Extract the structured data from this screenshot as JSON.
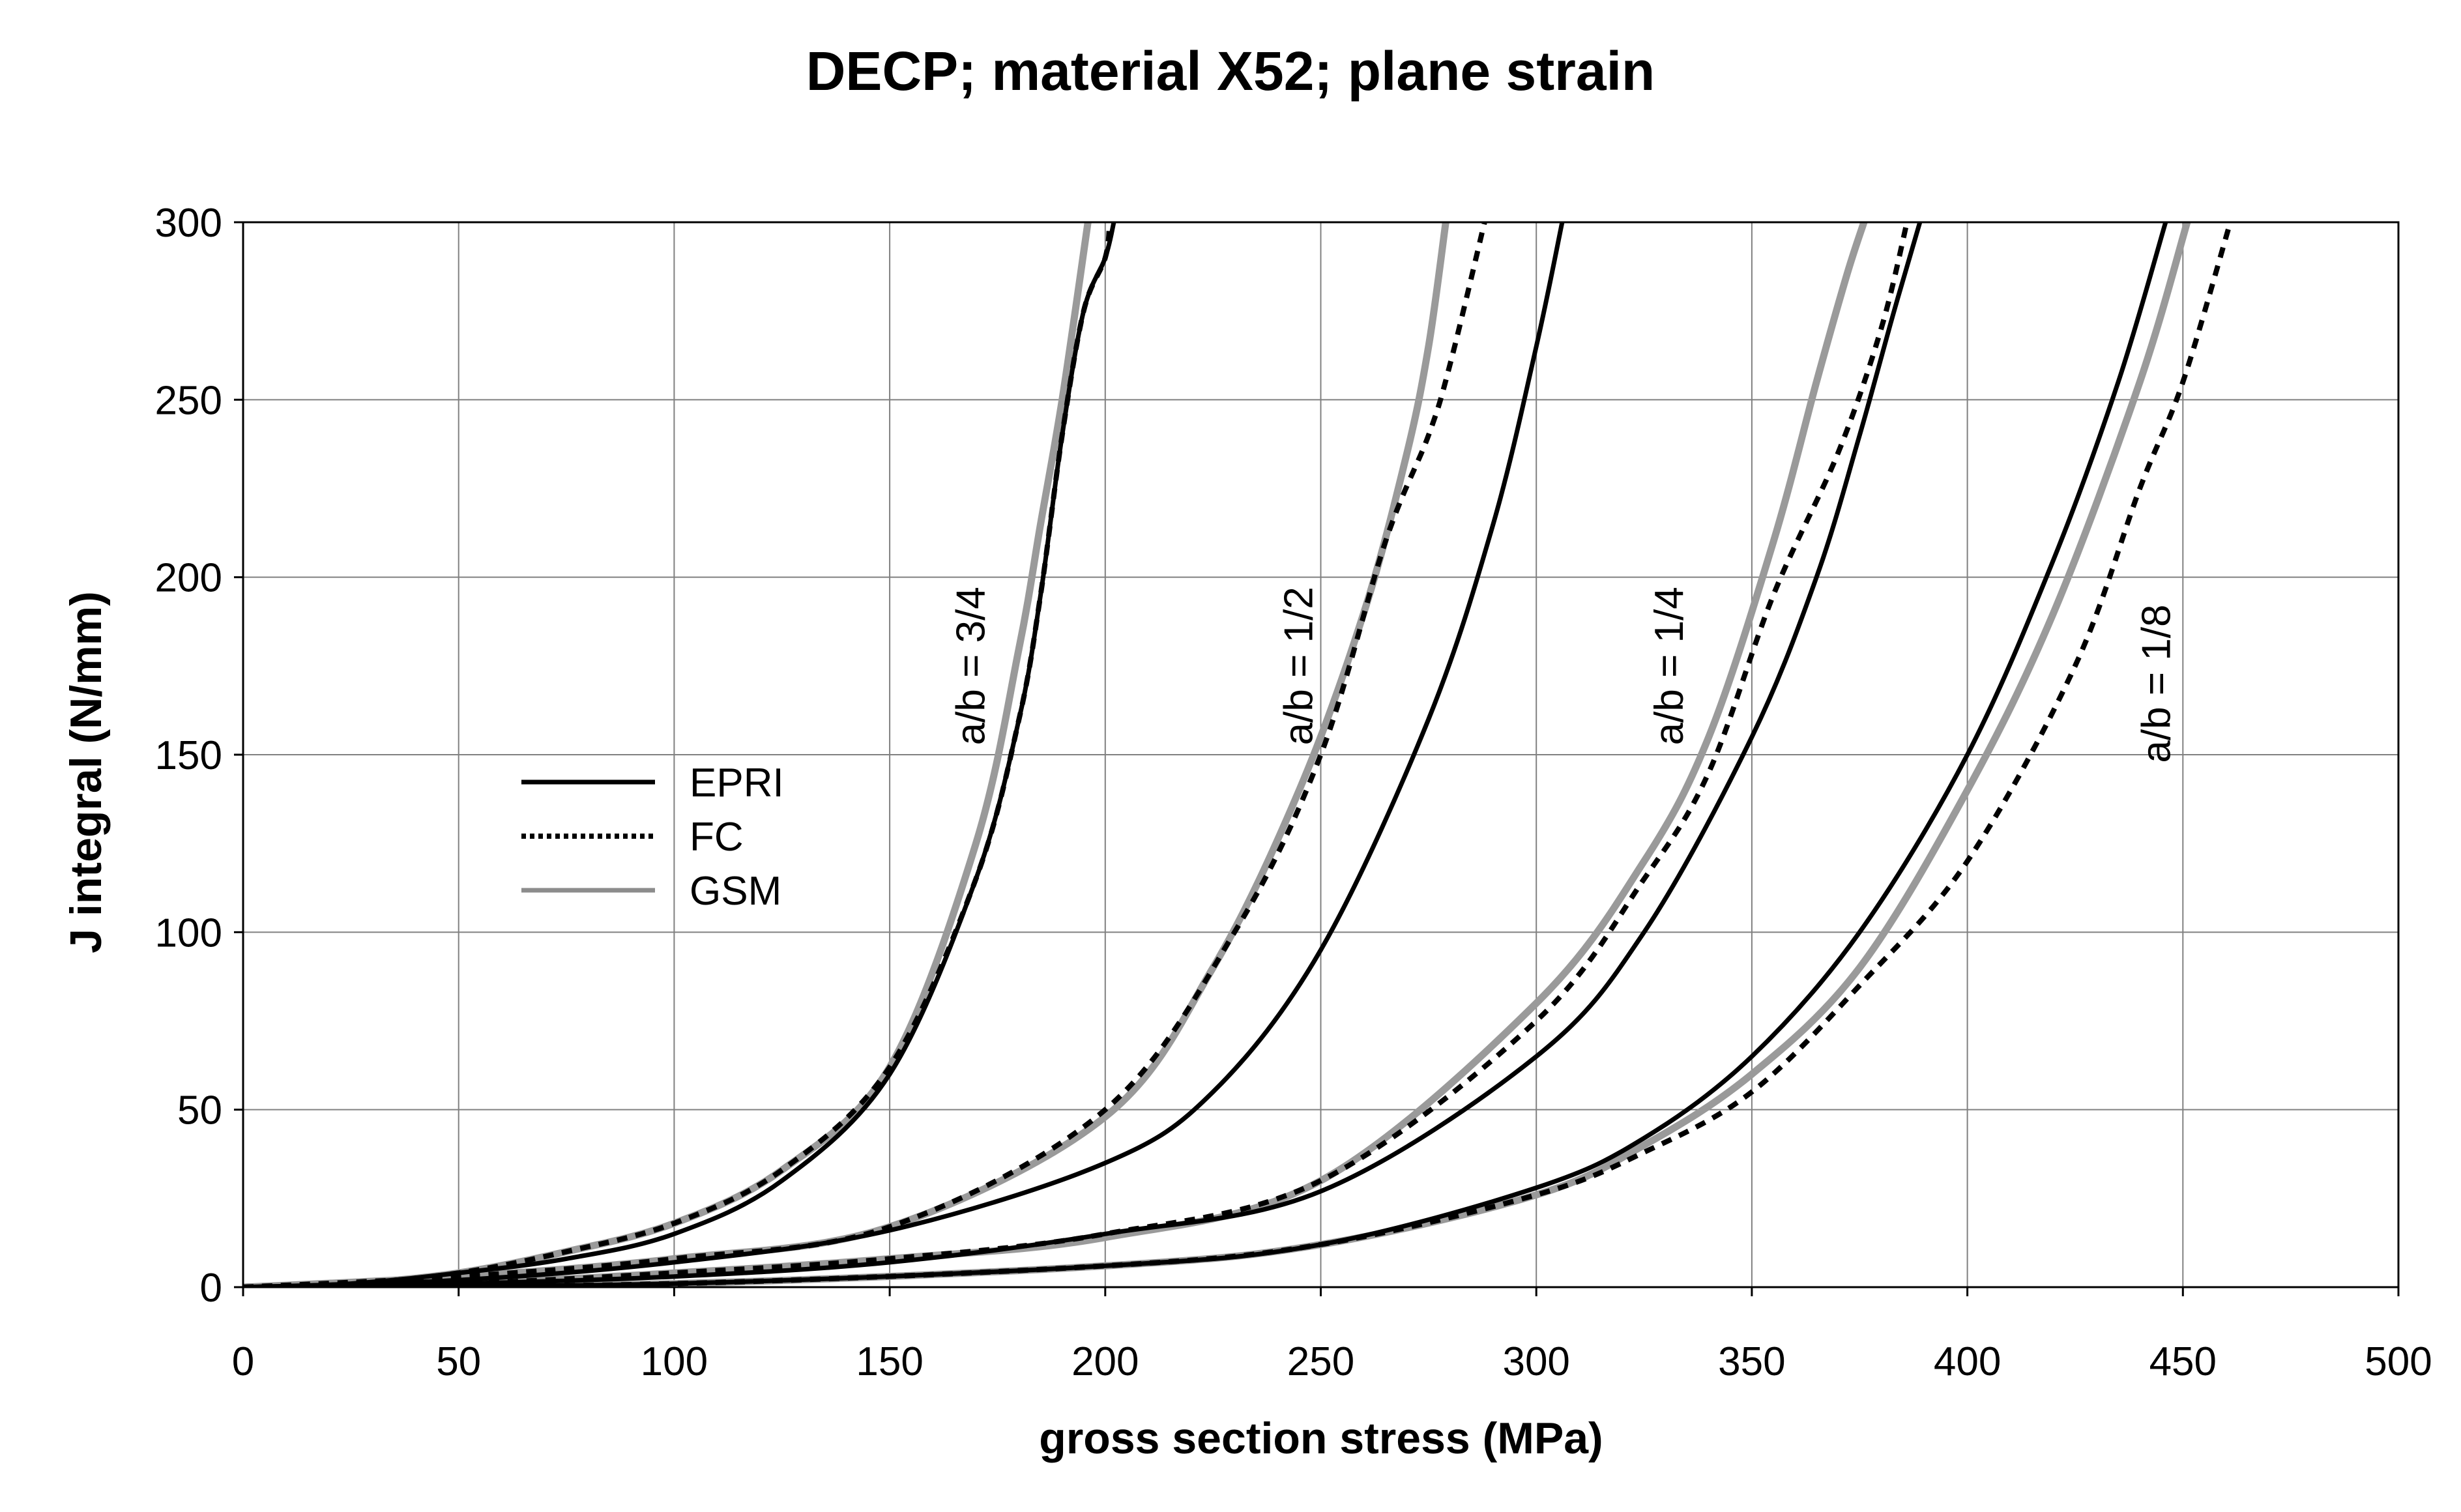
{
  "chart_data": {
    "type": "line",
    "title": "DECP; material X52; plane strain",
    "xlabel": "gross section stress (MPa)",
    "ylabel": "J integral (N/mm)",
    "xlim": [
      0,
      500
    ],
    "ylim": [
      0,
      300
    ],
    "x_ticks": [
      0,
      50,
      100,
      150,
      200,
      250,
      300,
      350,
      400,
      450,
      500
    ],
    "y_ticks": [
      0,
      50,
      100,
      150,
      200,
      250,
      300
    ],
    "grid": true,
    "legend": {
      "placement": "middle-left",
      "entries": [
        {
          "name": "EPRI",
          "style": "solid",
          "color": "#000000"
        },
        {
          "name": "FC",
          "style": "dotted",
          "color": "#000000"
        },
        {
          "name": "GSM",
          "style": "solid",
          "color": "#8c8c8c"
        }
      ]
    },
    "annotations": [
      {
        "text": "a/b = 3/4",
        "x": 172,
        "y": 175
      },
      {
        "text": "a/b = 1/2",
        "x": 248,
        "y": 175
      },
      {
        "text": "a/b = 1/4",
        "x": 334,
        "y": 175
      },
      {
        "text": "a/b = 1/8",
        "x": 447,
        "y": 170
      }
    ],
    "series": [
      {
        "name": "EPRI",
        "case": "a/b = 3/4",
        "x": [
          0,
          25,
          50,
          75,
          100,
          125,
          150,
          170,
          180,
          185,
          190,
          195,
          200,
          202
        ],
        "y": [
          0,
          1,
          4,
          8,
          15,
          30,
          60,
          115,
          160,
          195,
          240,
          275,
          290,
          300
        ]
      },
      {
        "name": "FC",
        "case": "a/b = 3/4",
        "x": [
          0,
          25,
          50,
          75,
          100,
          125,
          150,
          170,
          180,
          185,
          190,
          195,
          200,
          201
        ],
        "y": [
          0,
          1,
          4,
          10,
          18,
          33,
          62,
          115,
          160,
          195,
          240,
          275,
          290,
          300
        ]
      },
      {
        "name": "GSM",
        "case": "a/b = 3/4",
        "x": [
          0,
          25,
          50,
          75,
          100,
          125,
          150,
          170,
          180,
          185,
          190,
          196
        ],
        "y": [
          0,
          1,
          4,
          10,
          18,
          33,
          62,
          125,
          180,
          215,
          250,
          300
        ]
      },
      {
        "name": "EPRI",
        "case": "a/b = 1/2",
        "x": [
          0,
          50,
          100,
          150,
          200,
          225,
          250,
          275,
          290,
          300,
          306
        ],
        "y": [
          0,
          2,
          7,
          16,
          35,
          55,
          95,
          160,
          215,
          265,
          300
        ]
      },
      {
        "name": "FC",
        "case": "a/b = 1/2",
        "x": [
          0,
          50,
          100,
          150,
          200,
          230,
          250,
          265,
          275,
          280,
          288
        ],
        "y": [
          0,
          3,
          8,
          17,
          50,
          100,
          150,
          210,
          240,
          260,
          300
        ]
      },
      {
        "name": "GSM",
        "case": "a/b = 1/2",
        "x": [
          0,
          50,
          100,
          150,
          200,
          225,
          245,
          260,
          270,
          275,
          279
        ],
        "y": [
          0,
          3,
          8,
          17,
          48,
          90,
          140,
          190,
          235,
          265,
          300
        ]
      },
      {
        "name": "EPRI",
        "case": "a/b = 1/4",
        "x": [
          0,
          50,
          100,
          150,
          200,
          250,
          300,
          325,
          350,
          365,
          375,
          383,
          389
        ],
        "y": [
          0,
          1,
          3,
          7,
          15,
          27,
          65,
          100,
          155,
          200,
          240,
          275,
          300
        ]
      },
      {
        "name": "FC",
        "case": "a/b = 1/4",
        "x": [
          0,
          50,
          100,
          150,
          200,
          250,
          300,
          325,
          340,
          355,
          370,
          380,
          386
        ],
        "y": [
          0,
          1,
          4,
          8,
          15,
          30,
          75,
          115,
          145,
          195,
          235,
          270,
          300
        ]
      },
      {
        "name": "GSM",
        "case": "a/b = 1/4",
        "x": [
          0,
          50,
          100,
          150,
          200,
          250,
          300,
          325,
          340,
          355,
          365,
          372,
          376
        ],
        "y": [
          0,
          1,
          4,
          8,
          14,
          30,
          80,
          120,
          155,
          210,
          255,
          285,
          300
        ]
      },
      {
        "name": "EPRI",
        "case": "a/b = 1/8",
        "x": [
          0,
          100,
          200,
          250,
          300,
          325,
          350,
          375,
          400,
          420,
          435,
          446
        ],
        "y": [
          0,
          1,
          6,
          12,
          28,
          42,
          65,
          100,
          150,
          205,
          255,
          300
        ]
      },
      {
        "name": "FC",
        "case": "a/b = 1/8",
        "x": [
          0,
          100,
          200,
          250,
          300,
          325,
          350,
          375,
          400,
          425,
          440,
          450,
          461
        ],
        "y": [
          0,
          1,
          6,
          12,
          26,
          38,
          55,
          85,
          120,
          175,
          225,
          255,
          300
        ]
      },
      {
        "name": "GSM",
        "case": "a/b = 1/8",
        "x": [
          0,
          100,
          200,
          250,
          300,
          325,
          350,
          375,
          400,
          420,
          440,
          451
        ],
        "y": [
          0,
          1,
          6,
          12,
          26,
          40,
          60,
          90,
          140,
          190,
          255,
          300
        ]
      }
    ]
  }
}
